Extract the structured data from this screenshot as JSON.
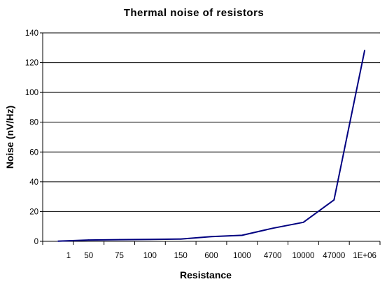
{
  "chart_data": {
    "type": "line",
    "title": "Thermal noise of resistors",
    "xlabel": "Resistance",
    "ylabel": "Noise (nV/Hz)",
    "categories": [
      "1",
      "50",
      "75",
      "100",
      "150",
      "600",
      "1000",
      "4700",
      "10000",
      "47000",
      "1E+06"
    ],
    "series": [
      {
        "values": [
          0.13,
          0.91,
          1.11,
          1.28,
          1.57,
          3.14,
          4.06,
          8.8,
          12.8,
          27.8,
          128.3
        ],
        "color": "#000080"
      }
    ],
    "ylim": [
      0,
      140
    ],
    "yticks": [
      "0",
      "20",
      "40",
      "60",
      "80",
      "100",
      "120",
      "140"
    ],
    "grid": true,
    "legend": "none"
  }
}
